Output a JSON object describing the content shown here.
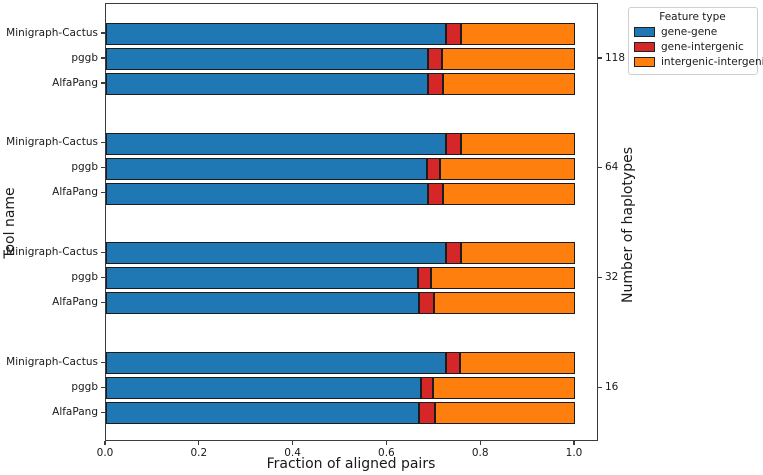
{
  "chart_data": {
    "type": "bar",
    "orientation": "horizontal",
    "stacked": true,
    "title": "",
    "xlabel": "Fraction of aligned pairs",
    "ylabel_left": "Tool name",
    "ylabel_right": "Number of haplotypes",
    "xlim": [
      0.0,
      1.05
    ],
    "xtick_labels": [
      "0.0",
      "0.2",
      "0.4",
      "0.6",
      "0.8",
      "1.0"
    ],
    "xtick_values": [
      0.0,
      0.2,
      0.4,
      0.6,
      0.8,
      1.0
    ],
    "grid": false,
    "bar_edge_color": "#1c1c1c",
    "legend": {
      "title": "Feature type",
      "position": "upper right",
      "entries": [
        {
          "label": "gene-gene",
          "color": "#1f77b4"
        },
        {
          "label": "gene-intergenic",
          "color": "#d62728"
        },
        {
          "label": "intergenic-intergenic",
          "color": "#ff7f0e"
        }
      ]
    },
    "series_keys": [
      "gene-gene",
      "gene-intergenic",
      "intergenic-intergenic"
    ],
    "groups": [
      {
        "haplotypes": "118",
        "bars": [
          {
            "tool": "Minigraph-Cactus",
            "values": [
              0.725,
              0.033,
              0.242
            ]
          },
          {
            "tool": "pggb",
            "values": [
              0.686,
              0.03,
              0.284
            ]
          },
          {
            "tool": "AlfaPang",
            "values": [
              0.687,
              0.031,
              0.282
            ]
          }
        ]
      },
      {
        "haplotypes": "64",
        "bars": [
          {
            "tool": "Minigraph-Cactus",
            "values": [
              0.726,
              0.03,
              0.244
            ]
          },
          {
            "tool": "pggb",
            "values": [
              0.684,
              0.029,
              0.287
            ]
          },
          {
            "tool": "AlfaPang",
            "values": [
              0.686,
              0.032,
              0.282
            ]
          }
        ]
      },
      {
        "haplotypes": "32",
        "bars": [
          {
            "tool": "Minigraph-Cactus",
            "values": [
              0.725,
              0.032,
              0.243
            ]
          },
          {
            "tool": "pggb",
            "values": [
              0.666,
              0.028,
              0.306
            ]
          },
          {
            "tool": "AlfaPang",
            "values": [
              0.668,
              0.031,
              0.301
            ]
          }
        ]
      },
      {
        "haplotypes": "16",
        "bars": [
          {
            "tool": "Minigraph-Cactus",
            "values": [
              0.725,
              0.03,
              0.245
            ]
          },
          {
            "tool": "pggb",
            "values": [
              0.672,
              0.025,
              0.303
            ]
          },
          {
            "tool": "AlfaPang",
            "values": [
              0.667,
              0.034,
              0.299
            ]
          }
        ]
      }
    ]
  }
}
